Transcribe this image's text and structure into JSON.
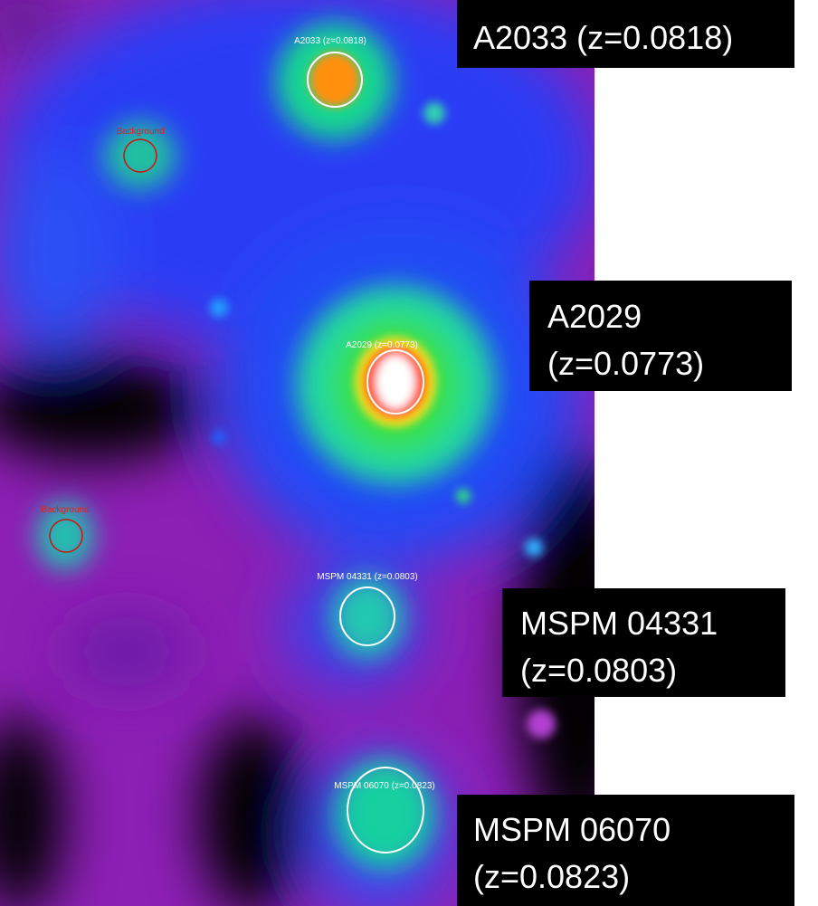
{
  "image_labels": [
    {
      "text": "A2033 (z=0.0818)"
    },
    {
      "text": "Background"
    },
    {
      "text": "A2029 (z=0.0773)"
    },
    {
      "text": "Background"
    },
    {
      "text": "MSPM 04331 (z=0.0803)"
    },
    {
      "text": "MSPM 06070 (z=0.0823)"
    }
  ],
  "callouts": [
    {
      "lines": [
        "A2033 (z=0.0818)"
      ]
    },
    {
      "lines": [
        "A2029",
        "(z=0.0773)"
      ]
    },
    {
      "lines": [
        "MSPM 04331",
        "(z=0.0803)"
      ]
    },
    {
      "lines": [
        "MSPM 06070",
        "(z=0.0823)"
      ]
    }
  ]
}
